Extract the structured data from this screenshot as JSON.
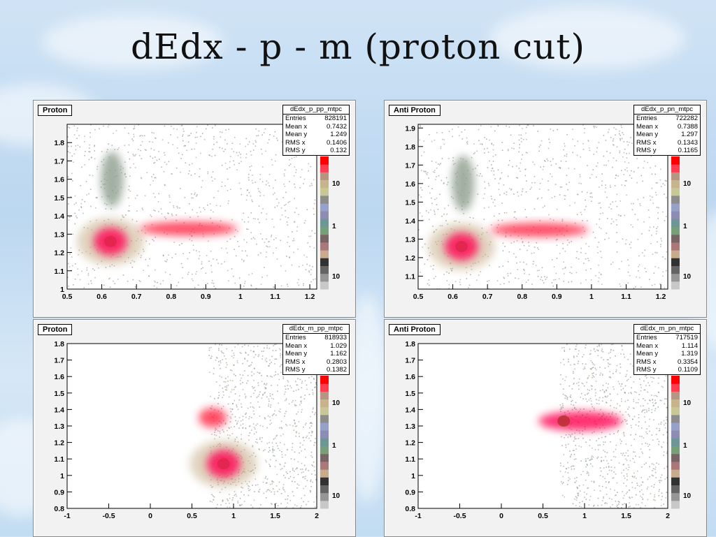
{
  "title": "dEdx - p - m (proton cut)",
  "chart_data": [
    {
      "type": "heatmap",
      "panel_label": "Proton",
      "stats_title": "dEdx_p_pp_mtpc",
      "stats": [
        {
          "label": "Entries",
          "value": "828191"
        },
        {
          "label": "Mean x",
          "value": "0.7432"
        },
        {
          "label": "Mean y",
          "value": "1.249"
        },
        {
          "label": "RMS x",
          "value": "0.1406"
        },
        {
          "label": "RMS y",
          "value": "0.132"
        }
      ],
      "x_ticks": [
        "0.5",
        "0.6",
        "0.7",
        "0.8",
        "0.9",
        "1",
        "1.1",
        "1.2"
      ],
      "y_ticks": [
        "1",
        "1.1",
        "1.2",
        "1.3",
        "1.4",
        "1.5",
        "1.6",
        "1.7",
        "1.8"
      ],
      "xlim": [
        0.5,
        1.22
      ],
      "ylim": [
        1.0,
        1.9
      ],
      "z_scale": "log",
      "z_ticks": [
        "1",
        "10"
      ],
      "palette": [
        "#c8c8c8",
        "#969696",
        "#646464",
        "#323232",
        "#c8aa8c",
        "#aa7878",
        "#786464",
        "#78a078",
        "#6e9696",
        "#8c8cb4",
        "#96a0c8",
        "#8c8c8c",
        "#c8c896",
        "#c8b48c",
        "#b49682",
        "#ff3c50",
        "#ff0000"
      ],
      "blobs": [
        {
          "x": 0.625,
          "y": 1.26,
          "color": "#00c800",
          "label": "core"
        },
        {
          "x": 0.625,
          "y": 1.26,
          "color": "#ff0050",
          "label": "peak ring"
        },
        {
          "x": 0.85,
          "y": 1.33,
          "color": "#ff2040",
          "label": "ridge"
        },
        {
          "x": 0.63,
          "y": 1.6,
          "color": "#8c9c8c",
          "label": "upper band"
        }
      ]
    },
    {
      "type": "heatmap",
      "panel_label": "Anti Proton",
      "stats_title": "dEdx_p_pn_mtpc",
      "stats": [
        {
          "label": "Entries",
          "value": "722282"
        },
        {
          "label": "Mean x",
          "value": "0.7388"
        },
        {
          "label": "Mean y",
          "value": "1.297"
        },
        {
          "label": "RMS x",
          "value": "0.1343"
        },
        {
          "label": "RMS y",
          "value": "0.1165"
        }
      ],
      "x_ticks": [
        "0.5",
        "0.6",
        "0.7",
        "0.8",
        "0.9",
        "1",
        "1.1",
        "1.2"
      ],
      "y_ticks": [
        "1.1",
        "1.2",
        "1.3",
        "1.4",
        "1.5",
        "1.6",
        "1.7",
        "1.8",
        "1.9"
      ],
      "xlim": [
        0.5,
        1.22
      ],
      "ylim": [
        1.03,
        1.92
      ],
      "z_scale": "log",
      "z_ticks": [
        "1",
        "10"
      ],
      "palette": [
        "#c8c8c8",
        "#969696",
        "#646464",
        "#323232",
        "#c8aa8c",
        "#aa7878",
        "#786464",
        "#78a078",
        "#6e9696",
        "#8c8cb4",
        "#96a0c8",
        "#8c8c8c",
        "#c8c896",
        "#c8b48c",
        "#b49682",
        "#ff3c50",
        "#ff0000"
      ],
      "blobs": [
        {
          "x": 0.625,
          "y": 1.26,
          "color": "#00c800",
          "label": "core"
        },
        {
          "x": 0.625,
          "y": 1.26,
          "color": "#ff0050",
          "label": "peak ring"
        },
        {
          "x": 0.85,
          "y": 1.35,
          "color": "#ff2040",
          "label": "ridge"
        },
        {
          "x": 0.63,
          "y": 1.6,
          "color": "#8c9c8c",
          "label": "upper band"
        }
      ]
    },
    {
      "type": "heatmap",
      "panel_label": "Proton",
      "stats_title": "dEdx_m_pp_mtpc",
      "stats": [
        {
          "label": "Entries",
          "value": "818933"
        },
        {
          "label": "Mean x",
          "value": "1.029"
        },
        {
          "label": "Mean y",
          "value": "1.162"
        },
        {
          "label": "RMS x",
          "value": "0.2803"
        },
        {
          "label": "RMS y",
          "value": "0.1382"
        }
      ],
      "x_ticks": [
        "-1",
        "-0.5",
        "0",
        "0.5",
        "1",
        "1.5",
        "2"
      ],
      "y_ticks": [
        "0.8",
        "0.9",
        "1",
        "1.1",
        "1.2",
        "1.3",
        "1.4",
        "1.5",
        "1.6",
        "1.7",
        "1.8"
      ],
      "xlim": [
        -1,
        2
      ],
      "ylim": [
        0.8,
        1.8
      ],
      "z_scale": "log",
      "z_ticks": [
        "1",
        "10"
      ],
      "palette": [
        "#c8c8c8",
        "#969696",
        "#646464",
        "#323232",
        "#c8aa8c",
        "#aa7878",
        "#786464",
        "#78a078",
        "#6e9696",
        "#8c8cb4",
        "#96a0c8",
        "#8c8c8c",
        "#c8c896",
        "#c8b48c",
        "#b49682",
        "#ff3c50",
        "#ff0000"
      ],
      "blobs": [
        {
          "x": 0.88,
          "y": 1.07,
          "color": "#00c800",
          "label": "core"
        },
        {
          "x": 0.88,
          "y": 1.07,
          "color": "#ff0050",
          "label": "peak ring"
        },
        {
          "x": 0.75,
          "y": 1.35,
          "color": "#ff2040",
          "label": "edge band"
        }
      ]
    },
    {
      "type": "heatmap",
      "panel_label": "Anti Proton",
      "stats_title": "dEdx_m_pn_mtpc",
      "stats": [
        {
          "label": "Entries",
          "value": "717519"
        },
        {
          "label": "Mean x",
          "value": "1.114"
        },
        {
          "label": "Mean y",
          "value": "1.319"
        },
        {
          "label": "RMS x",
          "value": "0.3354"
        },
        {
          "label": "RMS y",
          "value": "0.1109"
        }
      ],
      "x_ticks": [
        "-1",
        "-0.5",
        "0",
        "0.5",
        "1",
        "1.5",
        "2"
      ],
      "y_ticks": [
        "0.8",
        "0.9",
        "1",
        "1.1",
        "1.2",
        "1.3",
        "1.4",
        "1.5",
        "1.6",
        "1.7",
        "1.8"
      ],
      "xlim": [
        -1,
        2
      ],
      "ylim": [
        0.8,
        1.8
      ],
      "z_scale": "log",
      "z_ticks": [
        "1",
        "10"
      ],
      "palette": [
        "#c8c8c8",
        "#969696",
        "#646464",
        "#323232",
        "#c8aa8c",
        "#aa7878",
        "#786464",
        "#78a078",
        "#6e9696",
        "#8c8cb4",
        "#96a0c8",
        "#8c8c8c",
        "#c8c896",
        "#c8b48c",
        "#b49682",
        "#ff3c50",
        "#ff0000"
      ],
      "blobs": [
        {
          "x": 0.75,
          "y": 1.33,
          "color": "#00c800",
          "label": "core"
        },
        {
          "x": 0.95,
          "y": 1.33,
          "color": "#ff0050",
          "label": "peak band"
        }
      ]
    }
  ]
}
